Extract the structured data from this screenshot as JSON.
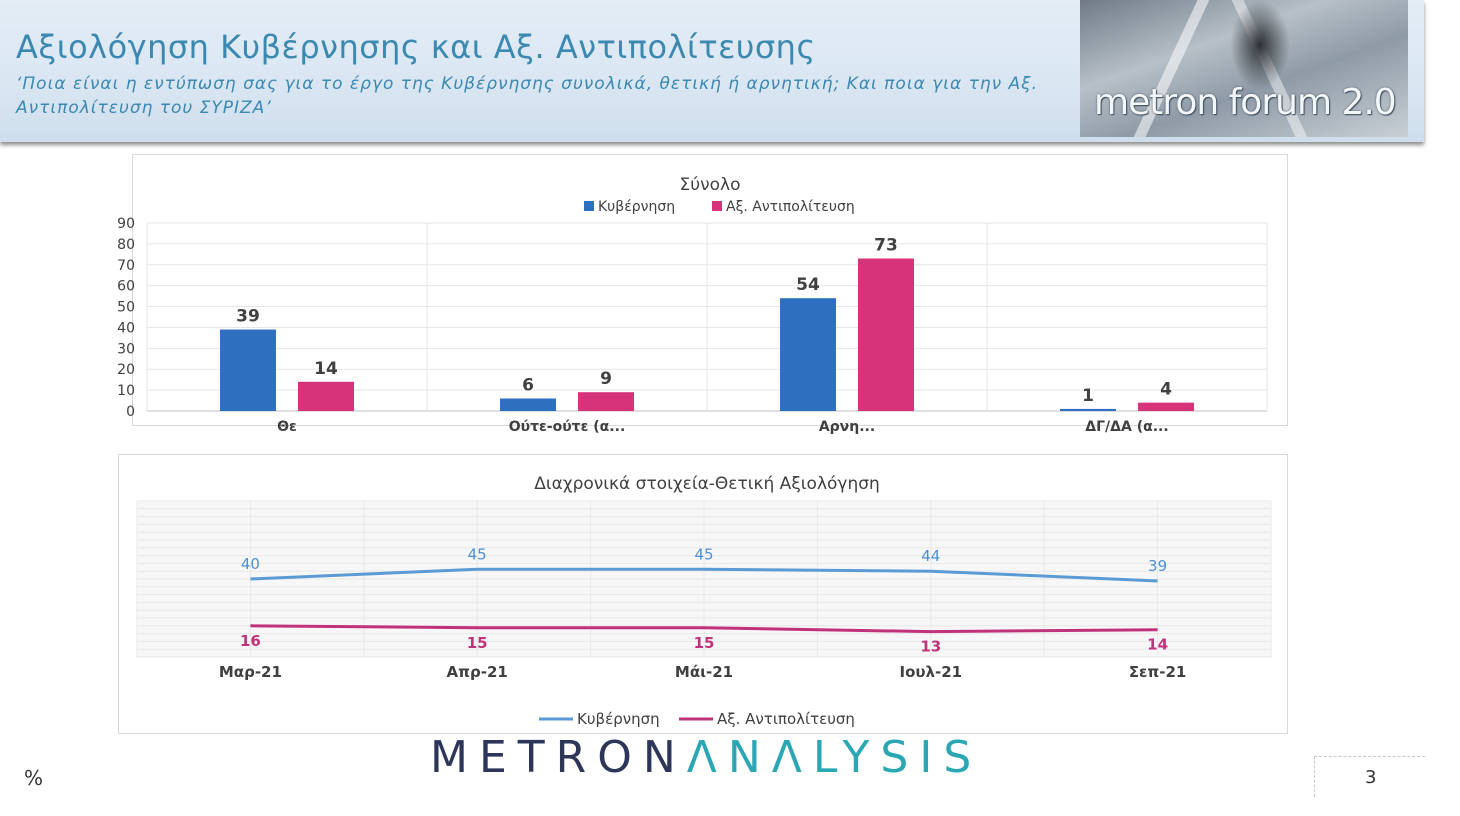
{
  "header": {
    "title": "Αξιολόγηση Κυβέρνησης και Αξ. Αντιπολίτευσης",
    "subtitle": "‘Ποια είναι η εντύπωση σας για το έργο της Κυβέρνησης συνολικά, θετική ή αρνητική; Και ποια για την Αξ. Αντιπολίτευση του ΣΥΡΙΖΑ’",
    "logo_text": "metron forum 2.0"
  },
  "footer": {
    "brand_dark": "METRON",
    "brand_teal": "ΛNΛLYSIS",
    "unit": "%",
    "page_number": "3"
  },
  "colors": {
    "gov": "#2e6fbf",
    "opp": "#d6337a",
    "gov_line": "#5b9bd5",
    "opp_line": "#c0337a"
  },
  "chart_data": [
    {
      "type": "bar",
      "title": "Σύνολο",
      "categories": [
        "Θε",
        "Ούτε-ούτε (α...",
        "Αρνη...",
        "ΔΓ/ΔΑ (α..."
      ],
      "series": [
        {
          "name": "Κυβέρνηση",
          "values": [
            39,
            6,
            54,
            1
          ]
        },
        {
          "name": "Αξ. Αντιπολίτευση",
          "values": [
            14,
            9,
            73,
            4
          ]
        }
      ],
      "ylim": [
        0,
        90
      ],
      "yticks": [
        0,
        10,
        20,
        30,
        40,
        50,
        60,
        70,
        80,
        90
      ],
      "legend": "top",
      "grid": true
    },
    {
      "type": "line",
      "title": "Διαχρονικά στοιχεία-Θετική Αξιολόγηση",
      "categories": [
        "Μαρ-21",
        "Απρ-21",
        "Μάι-21",
        "Ιουλ-21",
        "Σεπ-21"
      ],
      "series": [
        {
          "name": "Κυβέρνηση",
          "values": [
            40,
            45,
            45,
            44,
            39
          ]
        },
        {
          "name": "Αξ. Αντιπολίτευση",
          "values": [
            16,
            15,
            15,
            13,
            14
          ]
        }
      ],
      "ylim": [
        0,
        80
      ],
      "legend": "bottom",
      "grid": true
    }
  ]
}
